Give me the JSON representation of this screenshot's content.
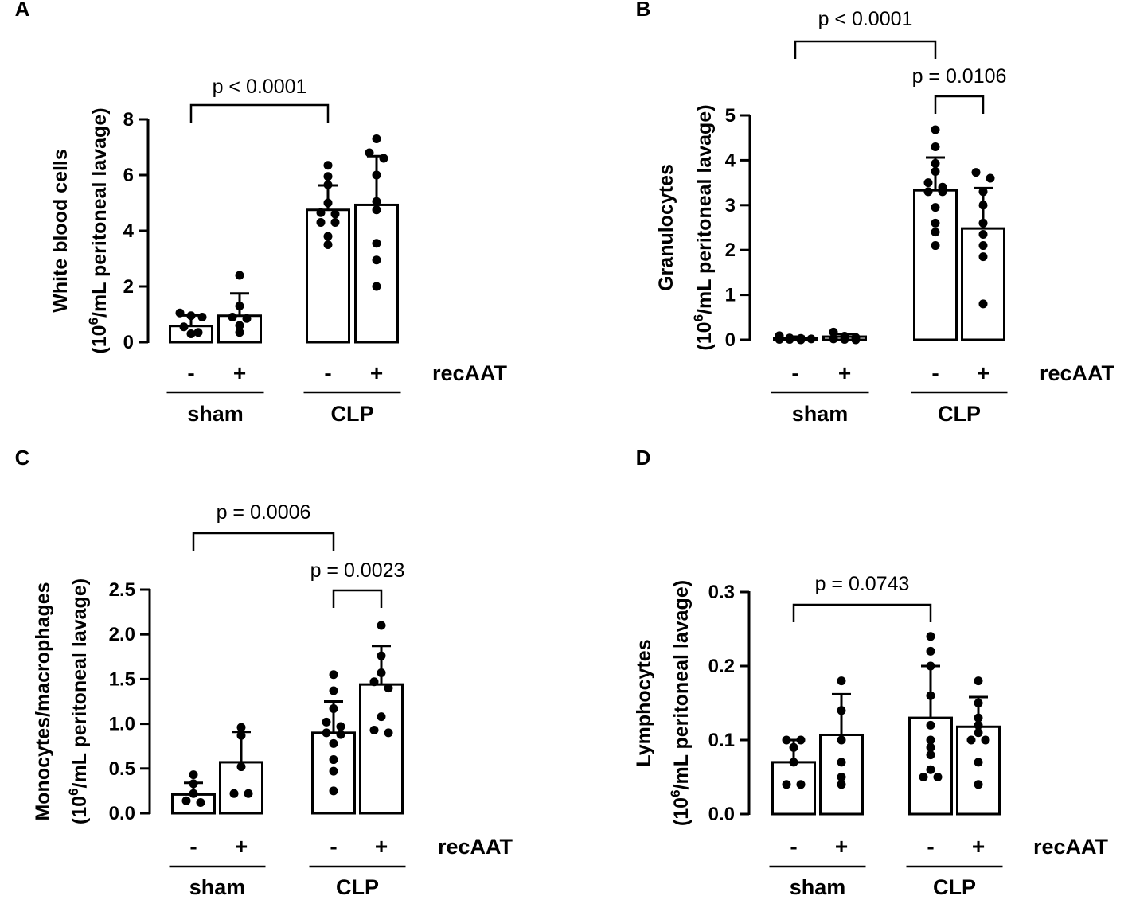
{
  "chart_data": [
    {
      "panel": "A",
      "type": "bar",
      "ylabel_line1": "White blood cells",
      "ylabel_line2_pre": "(10",
      "ylabel_line2_sup": "6",
      "ylabel_line2_post": "/mL peritoneal lavage)",
      "ylim": [
        0,
        8
      ],
      "yticks": [
        0,
        2,
        4,
        6,
        8
      ],
      "tick_labels": [
        "0",
        "2",
        "4",
        "6",
        "8"
      ],
      "categories": [
        "sham -",
        "sham +",
        "CLP -",
        "CLP +"
      ],
      "signs": [
        "-",
        "+",
        "-",
        "+"
      ],
      "groups": [
        "sham",
        "CLP"
      ],
      "treatment_label": "recAAT",
      "values": [
        0.58,
        0.95,
        4.75,
        4.93
      ],
      "errors": [
        0.38,
        0.8,
        0.88,
        1.75
      ],
      "points": [
        [
          1.05,
          0.95,
          0.9,
          0.55,
          0.35,
          0.3
        ],
        [
          2.4,
          1.3,
          0.9,
          0.85,
          0.6,
          0.35
        ],
        [
          6.35,
          5.95,
          5.65,
          5.0,
          4.65,
          4.6,
          4.3,
          4.3,
          3.8,
          3.5
        ],
        [
          7.3,
          6.8,
          6.6,
          6.0,
          5.05,
          4.75,
          3.55,
          2.95,
          2.0
        ]
      ],
      "comparisons": [
        {
          "from": 0,
          "to": 2,
          "label": "p < 0.0001"
        }
      ]
    },
    {
      "panel": "B",
      "type": "bar",
      "ylabel_line1": "Granulocytes",
      "ylabel_line2_pre": "(10",
      "ylabel_line2_sup": "6",
      "ylabel_line2_post": "/mL peritoneal lavage)",
      "ylim": [
        0,
        5
      ],
      "yticks": [
        0,
        1,
        2,
        3,
        4,
        5
      ],
      "tick_labels": [
        "0",
        "1",
        "2",
        "3",
        "4",
        "5"
      ],
      "categories": [
        "sham -",
        "sham +",
        "CLP -",
        "CLP +"
      ],
      "signs": [
        "-",
        "+",
        "-",
        "+"
      ],
      "groups": [
        "sham",
        "CLP"
      ],
      "treatment_label": "recAAT",
      "values": [
        0.03,
        0.07,
        3.33,
        2.48
      ],
      "errors": [
        0.04,
        0.06,
        0.73,
        0.9
      ],
      "points": [
        [
          0.09,
          0.04,
          0.03,
          0.02,
          0.01,
          0.01,
          0.0
        ],
        [
          0.17,
          0.08,
          0.05,
          0.02,
          0.01,
          0.0
        ],
        [
          4.68,
          4.3,
          3.93,
          3.75,
          3.5,
          3.4,
          3.3,
          3.3,
          2.95,
          2.6,
          2.4,
          2.1
        ],
        [
          3.73,
          3.6,
          3.3,
          3.0,
          2.6,
          2.35,
          2.1,
          1.85,
          0.8
        ]
      ],
      "comparisons": [
        {
          "from": 0,
          "to": 2,
          "label": "p < 0.0001"
        },
        {
          "from": 2,
          "to": 3,
          "label": "p = 0.0106"
        }
      ]
    },
    {
      "panel": "C",
      "type": "bar",
      "ylabel_line1": "Monocytes/macrophages",
      "ylabel_line2_pre": "(10",
      "ylabel_line2_sup": "6",
      "ylabel_line2_post": "/mL peritoneal lavage)",
      "ylim": [
        0,
        2.5
      ],
      "yticks": [
        0,
        0.5,
        1,
        1.5,
        2,
        2.5
      ],
      "tick_labels": [
        "0.0",
        "0.5",
        "1.0",
        "1.5",
        "2.0",
        "2.5"
      ],
      "categories": [
        "sham -",
        "sham +",
        "CLP -",
        "CLP +"
      ],
      "signs": [
        "-",
        "+",
        "-",
        "+"
      ],
      "groups": [
        "sham",
        "CLP"
      ],
      "treatment_label": "recAAT",
      "values": [
        0.21,
        0.57,
        0.9,
        1.44
      ],
      "errors": [
        0.13,
        0.34,
        0.35,
        0.43
      ],
      "points": [
        [
          0.43,
          0.33,
          0.22,
          0.14,
          0.12
        ],
        [
          0.96,
          0.87,
          0.52,
          0.22,
          0.22
        ],
        [
          1.55,
          1.37,
          1.17,
          1.02,
          0.97,
          0.9,
          0.88,
          0.78,
          0.6,
          0.47,
          0.25
        ],
        [
          2.1,
          1.76,
          1.57,
          1.47,
          1.4,
          1.08,
          0.93,
          0.9
        ]
      ],
      "comparisons": [
        {
          "from": 0,
          "to": 2,
          "label": "p = 0.0006"
        },
        {
          "from": 2,
          "to": 3,
          "label": "p = 0.0023"
        }
      ]
    },
    {
      "panel": "D",
      "type": "bar",
      "ylabel_line1": "Lymphocytes",
      "ylabel_line2_pre": "(10",
      "ylabel_line2_sup": "6",
      "ylabel_line2_post": "/mL peritoneal lavage)",
      "ylim": [
        0,
        0.3
      ],
      "yticks": [
        0,
        0.1,
        0.2,
        0.3
      ],
      "tick_labels": [
        "0.0",
        "0.1",
        "0.2",
        "0.3"
      ],
      "categories": [
        "sham -",
        "sham +",
        "CLP -",
        "CLP +"
      ],
      "signs": [
        "-",
        "+",
        "-",
        "+"
      ],
      "groups": [
        "sham",
        "CLP"
      ],
      "treatment_label": "recAAT",
      "values": [
        0.07,
        0.107,
        0.13,
        0.118
      ],
      "errors": [
        0.03,
        0.055,
        0.07,
        0.04
      ],
      "points": [
        [
          0.1,
          0.1,
          0.09,
          0.07,
          0.04,
          0.04
        ],
        [
          0.18,
          0.14,
          0.1,
          0.07,
          0.05,
          0.04
        ],
        [
          0.24,
          0.22,
          0.2,
          0.16,
          0.12,
          0.1,
          0.09,
          0.08,
          0.06,
          0.05,
          0.05
        ],
        [
          0.18,
          0.15,
          0.13,
          0.12,
          0.11,
          0.1,
          0.1,
          0.07,
          0.04
        ]
      ],
      "comparisons": [
        {
          "from": 0,
          "to": 2,
          "label": "p = 0.0743"
        }
      ]
    }
  ]
}
